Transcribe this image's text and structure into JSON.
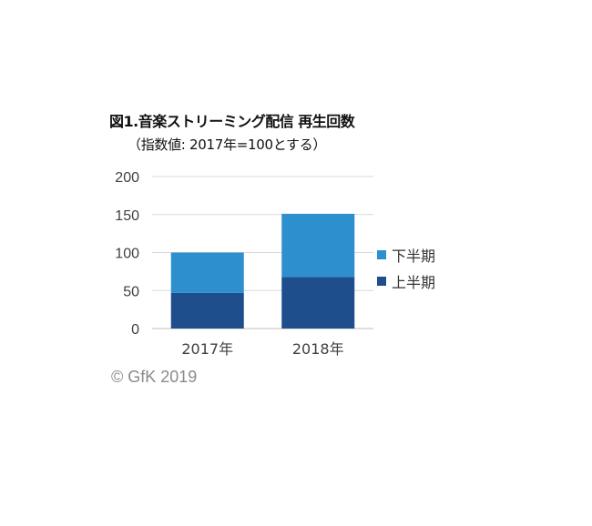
{
  "chart_data": {
    "type": "bar",
    "stacked": true,
    "title": "図1.音楽ストリーミング配信 再生回数",
    "subtitle": "（指数値: 2017年=100とする）",
    "categories": [
      "2017年",
      "2018年"
    ],
    "series": [
      {
        "name": "上半期",
        "values": [
          47,
          68
        ],
        "color": "#1f4e8c"
      },
      {
        "name": "下半期",
        "values": [
          53,
          83
        ],
        "color": "#2e8fce"
      }
    ],
    "ylim": [
      0,
      200
    ],
    "yticks": [
      "0",
      "50",
      "100",
      "150",
      "200"
    ],
    "grid": true,
    "legend": "right"
  },
  "copyright": "© GfK 2019"
}
